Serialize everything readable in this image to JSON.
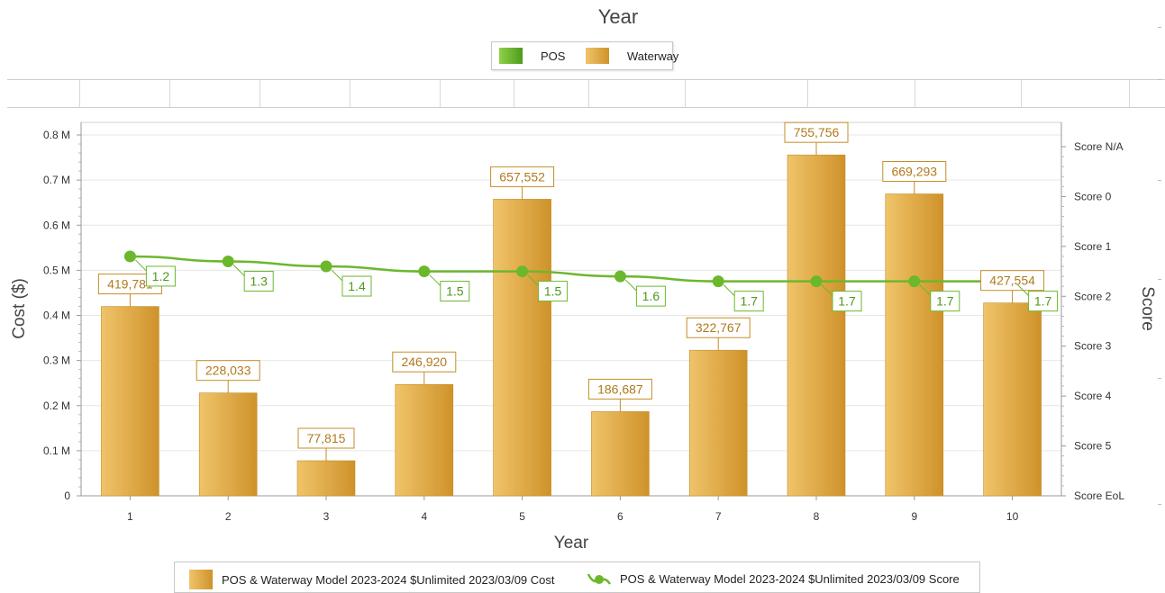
{
  "header": {
    "title": "Year",
    "legend": [
      {
        "label": "POS",
        "color": "#6bb82c"
      },
      {
        "label": "Waterway",
        "color": "#e0a83c"
      }
    ]
  },
  "chart_data": {
    "type": "bar",
    "title": "",
    "xlabel": "Year",
    "ylabel": "Cost ($)",
    "y2label": "Score",
    "categories": [
      "1",
      "2",
      "3",
      "4",
      "5",
      "6",
      "7",
      "8",
      "9",
      "10"
    ],
    "ylim": [
      0,
      800000
    ],
    "y_ticks": [
      {
        "value": 0,
        "label": "0"
      },
      {
        "value": 100000,
        "label": "0.1 M"
      },
      {
        "value": 200000,
        "label": "0.2 M"
      },
      {
        "value": 300000,
        "label": "0.3 M"
      },
      {
        "value": 400000,
        "label": "0.4 M"
      },
      {
        "value": 500000,
        "label": "0.5 M"
      },
      {
        "value": 600000,
        "label": "0.6 M"
      },
      {
        "value": 700000,
        "label": "0.7 M"
      },
      {
        "value": 800000,
        "label": "0.8 M"
      }
    ],
    "y2_ticks": [
      "Score N/A",
      "Score 0",
      "Score 1",
      "Score 2",
      "Score 3",
      "Score 4",
      "Score 5",
      "Score EoL"
    ],
    "y2lim": [
      -1,
      6
    ],
    "y2_inverted": true,
    "grid": true,
    "series": [
      {
        "name": "POS & Waterway Model 2023-2024 $Unlimited 2023/03/09 Cost",
        "type": "bar",
        "axis": "left",
        "color": "#e0a83c",
        "values": [
          419781,
          228033,
          77815,
          246920,
          657552,
          186687,
          322767,
          755756,
          669293,
          427554
        ],
        "labels": [
          "419,781",
          "228,033",
          "77,815",
          "246,920",
          "657,552",
          "186,687",
          "322,767",
          "755,756",
          "669,293",
          "427,554"
        ]
      },
      {
        "name": "POS & Waterway Model 2023-2024 $Unlimited 2023/03/09 Score",
        "type": "line",
        "axis": "right",
        "color": "#6bb82c",
        "values": [
          1.2,
          1.3,
          1.4,
          1.5,
          1.5,
          1.6,
          1.7,
          1.7,
          1.7,
          1.7
        ],
        "labels": [
          "1.2",
          "1.3",
          "1.4",
          "1.5",
          "1.5",
          "1.6",
          "1.7",
          "1.7",
          "1.7",
          "1.7"
        ]
      }
    ],
    "legend": "bottom"
  }
}
